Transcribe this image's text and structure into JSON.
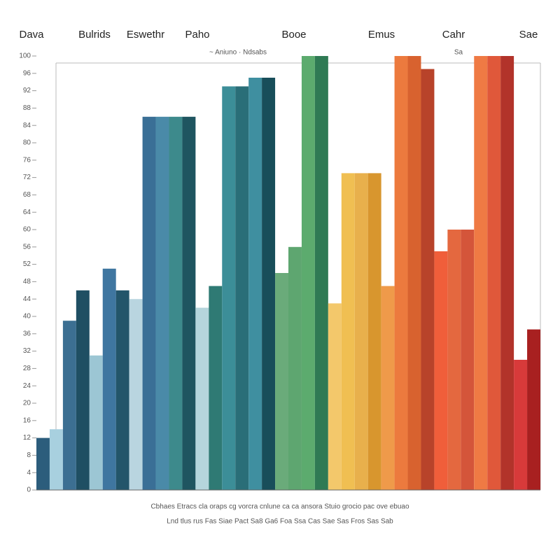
{
  "chart_data": {
    "type": "bar",
    "headings": [
      "Dava",
      "Bulrids",
      "Eswethr",
      "Paho",
      "Booe",
      "Emus",
      "Cahr",
      "Sae"
    ],
    "subtitle": "~ Aniuno · Ndsabs",
    "corner_note": "Sa",
    "footer_rows": [
      "Cbhaes Etracs cla oraps cg vorcra cnlune ca ca ansora Stuio grocio pac ove ebuao",
      "Lnd tlus rus Fas Siae Pact Sa8 Ga6 Foa Ssa Cas Sae Sas Fros Sas Sab"
    ],
    "categories": [
      null,
      null,
      null,
      null,
      null,
      null,
      null,
      null,
      null,
      null,
      null,
      null,
      null,
      null,
      null,
      null,
      null,
      null,
      null,
      null,
      null,
      null,
      null,
      null,
      null,
      null,
      null,
      null,
      null,
      null,
      null,
      null,
      null,
      null,
      null,
      null,
      null,
      null
    ],
    "values": [
      12,
      14,
      39,
      46,
      31,
      51,
      46,
      44,
      86,
      86,
      86,
      86,
      42,
      47,
      93,
      93,
      95,
      95,
      50,
      56,
      100,
      100,
      43,
      73,
      73,
      73,
      47,
      100,
      100,
      97,
      55,
      60,
      60,
      100,
      100,
      100,
      30,
      37
    ],
    "colors": [
      "#2c5d7c",
      "#a8d0df",
      "#3c6f92",
      "#1f4f63",
      "#9cc6d4",
      "#3f76a0",
      "#23556a",
      "#b9d5e0",
      "#3a6f96",
      "#4a8aa8",
      "#3d8a8c",
      "#1f5560",
      "#b5d5dc",
      "#2f7a74",
      "#3c8e98",
      "#2a6e78",
      "#3f8fa0",
      "#184e5a",
      "#6aab7a",
      "#5ea670",
      "#5cab6e",
      "#2f7a54",
      "#f3c86b",
      "#f0bf52",
      "#e8b04c",
      "#d8962e",
      "#ef9a4a",
      "#ec7a3e",
      "#d8622f",
      "#b8432a",
      "#f05e3a",
      "#e4683f",
      "#d4553a",
      "#ef7a44",
      "#e0583a",
      "#b2332a",
      "#d83a3a",
      "#a82020"
    ],
    "ylim": [
      0,
      100
    ],
    "yticks": [
      0,
      4,
      8,
      12,
      16,
      20,
      24,
      28,
      32,
      36,
      40,
      44,
      48,
      52,
      56,
      60,
      64,
      68,
      72,
      76,
      80,
      84,
      88,
      92,
      96,
      100
    ]
  }
}
